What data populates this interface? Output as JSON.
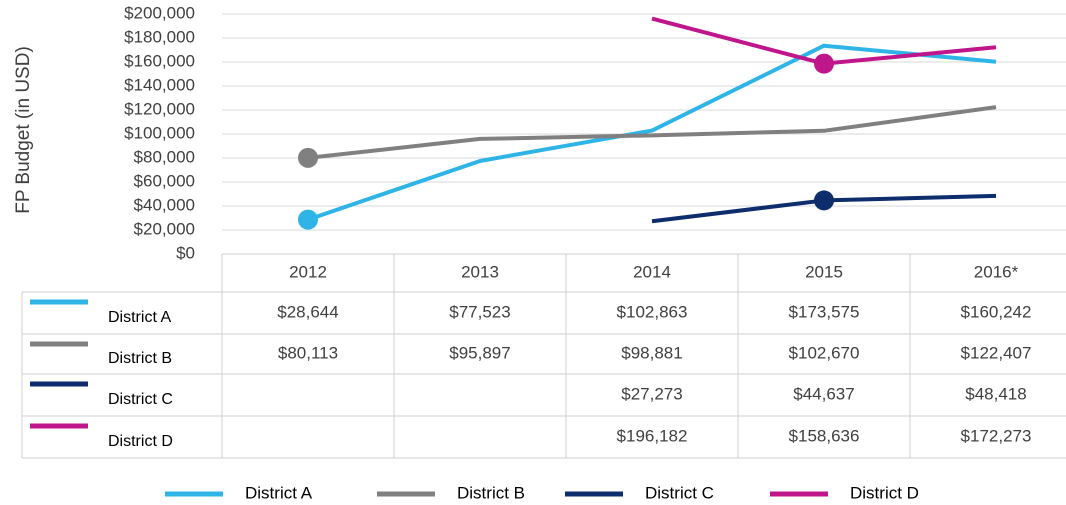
{
  "chart_data": {
    "type": "line",
    "y_label": "FP Budget (in USD)",
    "categories": [
      "2012",
      "2013",
      "2014",
      "2015",
      "2016*"
    ],
    "series": [
      {
        "name": "District A",
        "color": "#2eb4e6",
        "marker_index": 0,
        "values": [
          28644,
          77523,
          102863,
          173575,
          160242
        ],
        "value_labels": [
          "$28,644",
          "$77,523",
          "$102,863",
          "$173,575",
          "$160,242"
        ]
      },
      {
        "name": "District B",
        "color": "#808080",
        "marker_index": 0,
        "values": [
          80113,
          95897,
          98881,
          102670,
          122407
        ],
        "value_labels": [
          "$80,113",
          "$95,897",
          "$98,881",
          "$102,670",
          "$122,407"
        ]
      },
      {
        "name": "District C",
        "color": "#0d2d6c",
        "marker_index": 3,
        "values": [
          null,
          null,
          27273,
          44637,
          48418
        ],
        "value_labels": [
          null,
          null,
          "$27,273",
          "$44,637",
          "$48,418"
        ]
      },
      {
        "name": "District D",
        "color": "#c0168c",
        "marker_index": 3,
        "values": [
          null,
          null,
          196182,
          158636,
          172273
        ],
        "value_labels": [
          null,
          null,
          "$196,182",
          "$158,636",
          "$172,273"
        ]
      }
    ],
    "ylim": [
      0,
      200000
    ],
    "yticks": [
      {
        "value": 0,
        "label": "$0"
      },
      {
        "value": 20000,
        "label": "$20,000"
      },
      {
        "value": 40000,
        "label": "$40,000"
      },
      {
        "value": 60000,
        "label": "$60,000"
      },
      {
        "value": 80000,
        "label": "$80,000"
      },
      {
        "value": 100000,
        "label": "$100,000"
      },
      {
        "value": 120000,
        "label": "$120,000"
      },
      {
        "value": 140000,
        "label": "$140,000"
      },
      {
        "value": 160000,
        "label": "$160,000"
      },
      {
        "value": 180000,
        "label": "$180,000"
      },
      {
        "value": 200000,
        "label": "$200,000"
      }
    ],
    "grid": true
  }
}
